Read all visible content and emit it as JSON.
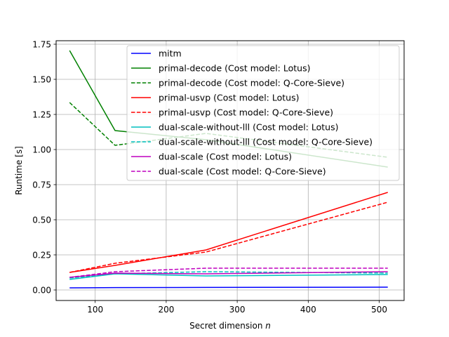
{
  "chart_data": {
    "type": "line",
    "title": "",
    "xlabel": "Secret dimension ",
    "xlabel_var": "n",
    "ylabel": "Runtime [s]",
    "xlim": [
      45,
      535
    ],
    "ylim": [
      -0.075,
      1.775
    ],
    "xticks": [
      100,
      200,
      300,
      400,
      500
    ],
    "yticks": [
      0.0,
      0.25,
      0.5,
      0.75,
      1.0,
      1.25,
      1.5,
      1.75
    ],
    "grid": true,
    "legend_position": "upper-right",
    "series": [
      {
        "name": "mitm",
        "color": "#0000ff",
        "dash": "solid",
        "x": [
          64,
          128,
          256,
          512
        ],
        "y": [
          0.015,
          0.017,
          0.018,
          0.02
        ]
      },
      {
        "name": "primal-decode (Cost model: Lotus)",
        "color": "#008000",
        "dash": "solid",
        "x": [
          64,
          128,
          256,
          512
        ],
        "y": [
          1.705,
          1.135,
          1.07,
          0.875
        ]
      },
      {
        "name": "primal-decode (Cost model: Q-Core-Sieve)",
        "color": "#008000",
        "dash": "dashed",
        "x": [
          64,
          128,
          256,
          512
        ],
        "y": [
          1.335,
          1.03,
          1.115,
          0.945
        ]
      },
      {
        "name": "primal-usvp (Cost model: Lotus)",
        "color": "#ff0000",
        "dash": "solid",
        "x": [
          64,
          128,
          256,
          512
        ],
        "y": [
          0.125,
          0.175,
          0.285,
          0.695
        ]
      },
      {
        "name": "primal-usvp (Cost model: Q-Core-Sieve)",
        "color": "#ff0000",
        "dash": "dashed",
        "x": [
          64,
          128,
          256,
          512
        ],
        "y": [
          0.125,
          0.19,
          0.27,
          0.625
        ]
      },
      {
        "name": "dual-scale-without-lll (Cost model: Lotus)",
        "color": "#00bfbf",
        "dash": "solid",
        "x": [
          64,
          128,
          256,
          512
        ],
        "y": [
          0.075,
          0.115,
          0.1,
          0.11
        ]
      },
      {
        "name": "dual-scale-without-lll (Cost model: Q-Core-Sieve)",
        "color": "#00bfbf",
        "dash": "dashed",
        "x": [
          64,
          128,
          256,
          512
        ],
        "y": [
          0.085,
          0.115,
          0.13,
          0.12
        ]
      },
      {
        "name": "dual-scale (Cost model: Lotus)",
        "color": "#bf00bf",
        "dash": "solid",
        "x": [
          64,
          128,
          256,
          512
        ],
        "y": [
          0.09,
          0.12,
          0.115,
          0.13
        ]
      },
      {
        "name": "dual-scale (Cost model: Q-Core-Sieve)",
        "color": "#bf00bf",
        "dash": "dashed",
        "x": [
          64,
          128,
          256,
          512
        ],
        "y": [
          0.09,
          0.13,
          0.155,
          0.155
        ]
      }
    ]
  }
}
